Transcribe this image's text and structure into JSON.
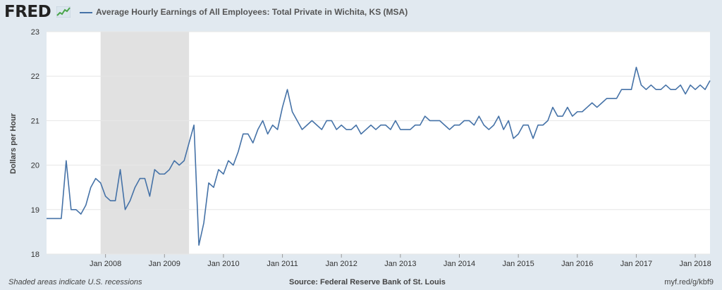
{
  "header": {
    "logo_text": "FRED",
    "logo_icon": "line-graph-icon",
    "series_legend": "Average Hourly Earnings of All Employees: Total Private in Wichita, KS (MSA)"
  },
  "footer": {
    "note": "Shaded areas indicate U.S. recessions",
    "source": "Source: Federal Reserve Bank of St. Louis",
    "short_url": "myf.red/g/kbf9"
  },
  "colors": {
    "line": "#4572a7",
    "recession": "#e1e1e1",
    "plot_bg": "#ffffff",
    "page_bg": "#e1e9f0"
  },
  "chart_data": {
    "type": "line",
    "title": "",
    "xlabel": "",
    "ylabel": "Dollars per Hour",
    "ylim": [
      18,
      23
    ],
    "xlim": [
      "2007-01",
      "2018-04"
    ],
    "yticks": [
      "18",
      "19",
      "20",
      "21",
      "22",
      "23"
    ],
    "xticks": [
      "Jan 2008",
      "Jan 2009",
      "Jan 2010",
      "Jan 2011",
      "Jan 2012",
      "Jan 2013",
      "Jan 2014",
      "Jan 2015",
      "Jan 2016",
      "Jan 2017",
      "Jan 2018"
    ],
    "grid": true,
    "recessions": [
      {
        "start": "2007-12",
        "end": "2009-06"
      }
    ],
    "series": [
      {
        "start": "2007-01",
        "frequency": "monthly",
        "values": [
          18.8,
          18.8,
          18.8,
          18.8,
          20.1,
          19.0,
          19.0,
          18.9,
          19.1,
          19.5,
          19.7,
          19.6,
          19.3,
          19.2,
          19.2,
          19.9,
          19.0,
          19.2,
          19.5,
          19.7,
          19.7,
          19.3,
          19.9,
          19.8,
          19.8,
          19.9,
          20.1,
          20.0,
          20.1,
          20.5,
          20.9,
          18.2,
          18.7,
          19.6,
          19.5,
          19.9,
          19.8,
          20.1,
          20.0,
          20.3,
          20.7,
          20.7,
          20.5,
          20.8,
          21.0,
          20.7,
          20.9,
          20.8,
          21.3,
          21.7,
          21.2,
          21.0,
          20.8,
          20.9,
          21.0,
          20.9,
          20.8,
          21.0,
          21.0,
          20.8,
          20.9,
          20.8,
          20.8,
          20.9,
          20.7,
          20.8,
          20.9,
          20.8,
          20.9,
          20.9,
          20.8,
          21.0,
          20.8,
          20.8,
          20.8,
          20.9,
          20.9,
          21.1,
          21.0,
          21.0,
          21.0,
          20.9,
          20.8,
          20.9,
          20.9,
          21.0,
          21.0,
          20.9,
          21.1,
          20.9,
          20.8,
          20.9,
          21.1,
          20.8,
          21.0,
          20.6,
          20.7,
          20.9,
          20.9,
          20.6,
          20.9,
          20.9,
          21.0,
          21.3,
          21.1,
          21.1,
          21.3,
          21.1,
          21.2,
          21.2,
          21.3,
          21.4,
          21.3,
          21.4,
          21.5,
          21.5,
          21.5,
          21.7,
          21.7,
          21.7,
          22.2,
          21.8,
          21.7,
          21.8,
          21.7,
          21.7,
          21.8,
          21.7,
          21.7,
          21.8,
          21.6,
          21.8,
          21.7,
          21.8,
          21.7,
          21.9
        ]
      }
    ]
  }
}
